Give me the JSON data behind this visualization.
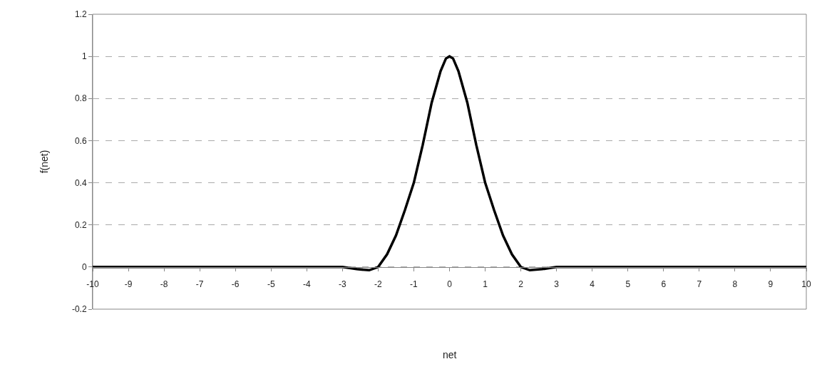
{
  "chart_data": {
    "type": "line",
    "xlabel": "net",
    "ylabel": "f(net)",
    "x": [
      -10,
      -3,
      -2.6,
      -2.25,
      -2,
      -1.75,
      -1.5,
      -1.25,
      -1,
      -0.75,
      -0.5,
      -0.25,
      -0.1,
      0,
      0.1,
      0.25,
      0.5,
      0.75,
      1,
      1.25,
      1.5,
      1.75,
      2,
      2.25,
      2.6,
      3,
      10
    ],
    "series": [
      {
        "color": "#000000",
        "values": [
          0,
          0,
          -0.01,
          -0.015,
          0,
          0.06,
          0.15,
          0.27,
          0.4,
          0.58,
          0.78,
          0.93,
          0.99,
          1,
          0.99,
          0.93,
          0.78,
          0.58,
          0.4,
          0.27,
          0.15,
          0.06,
          0,
          -0.015,
          -0.01,
          0,
          0
        ]
      }
    ],
    "xlim": [
      -10,
      10
    ],
    "xticks": [
      -10,
      -9,
      -8,
      -7,
      -6,
      -5,
      -4,
      -3,
      -2,
      -1,
      0,
      1,
      2,
      3,
      4,
      5,
      6,
      7,
      8,
      9,
      10
    ],
    "ylim": [
      -0.2,
      1.2
    ],
    "yticks": [
      -0.2,
      0,
      0.2,
      0.4,
      0.6,
      0.8,
      1,
      1.2
    ],
    "grid": "y",
    "marker": "none",
    "line_style": "solid"
  }
}
